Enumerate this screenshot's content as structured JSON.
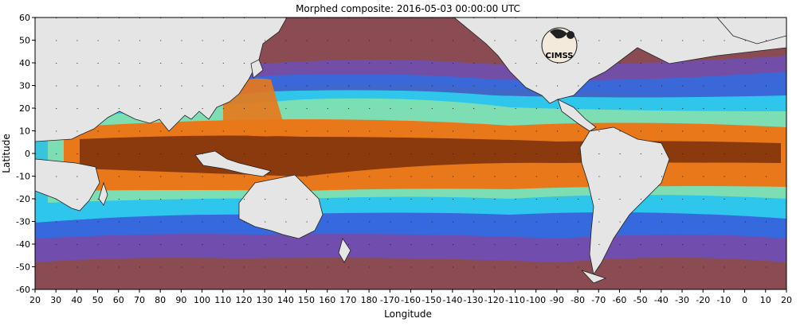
{
  "title": "Morphed composite: 2016-05-03 00:00:00 UTC",
  "xlabel": "Longitude",
  "ylabel": "Latitude",
  "logo_text": "CIMSS",
  "x_ticks": [
    "20",
    "30",
    "40",
    "50",
    "60",
    "70",
    "80",
    "90",
    "100",
    "110",
    "120",
    "130",
    "140",
    "150",
    "160",
    "170",
    "180",
    "-170",
    "-160",
    "-150",
    "-140",
    "-130",
    "-120",
    "-110",
    "-100",
    "-90",
    "-80",
    "-70",
    "-60",
    "-50",
    "-40",
    "-30",
    "-20",
    "-10",
    "0",
    "10",
    "20"
  ],
  "y_ticks": [
    "60",
    "50",
    "40",
    "30",
    "20",
    "10",
    "0",
    "-10",
    "-20",
    "-30",
    "-40",
    "-50",
    "-60"
  ],
  "colors": {
    "land": "#e5e5e5",
    "dry": "#8a4c52",
    "moist_purple": "#6a4fc4",
    "moist_blue": "#2c6fe6",
    "moist_cyan": "#2fd0ee",
    "moist_green": "#9be9a0",
    "wet_orange": "#e9781a",
    "wet_brown": "#8a3a0c"
  }
}
